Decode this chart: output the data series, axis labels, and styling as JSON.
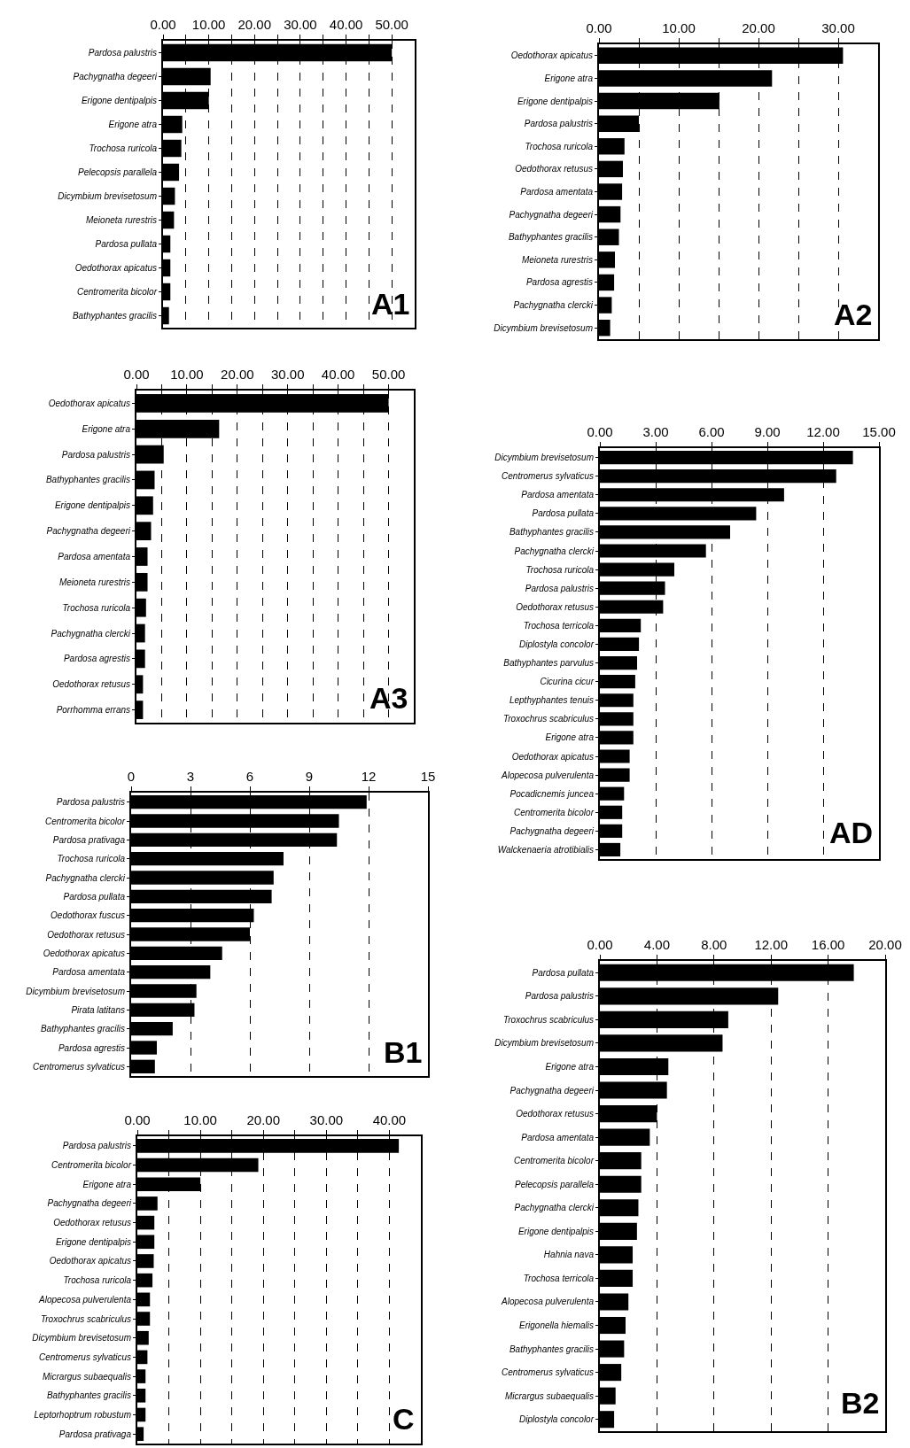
{
  "chart_data": [
    {
      "type": "bar",
      "orientation": "horizontal",
      "title": "A1",
      "color": "#000000",
      "grid": "x",
      "categories": [
        "Pardosa palustris",
        "Pachygnatha degeeri",
        "Erigone dentipalpis",
        "Erigone atra",
        "Trochosa ruricola",
        "Pelecopsis parallela",
        "Dicymbium brevisetosum",
        "Meioneta rurestris",
        "Pardosa pullata",
        "Oedothorax apicatus",
        "Centromerita bicolor",
        "Bathyphantes gracilis"
      ],
      "values": [
        50,
        10.4,
        10,
        4.2,
        4,
        3.5,
        2.6,
        2.4,
        1.6,
        1.6,
        1.6,
        1.3
      ],
      "xlim": [
        0,
        55
      ],
      "xticks": [
        {
          "value": 0,
          "label": "0.00"
        },
        {
          "value": 5,
          "label": null
        },
        {
          "value": 10,
          "label": "10.00"
        },
        {
          "value": 15,
          "label": null
        },
        {
          "value": 20,
          "label": "20.00"
        },
        {
          "value": 25,
          "label": null
        },
        {
          "value": 30,
          "label": "30.00"
        },
        {
          "value": 35,
          "label": null
        },
        {
          "value": 40,
          "label": "40.00"
        },
        {
          "value": 45,
          "label": null
        },
        {
          "value": 50,
          "label": "50.00"
        }
      ]
    },
    {
      "type": "bar",
      "orientation": "horizontal",
      "title": "A2",
      "color": "#000000",
      "grid": "x",
      "categories": [
        "Oedothorax apicatus",
        "Erigone atra",
        "Erigone dentipalpis",
        "Pardosa palustris",
        "Trochosa ruricola",
        "Oedothorax retusus",
        "Pardosa amentata",
        "Pachygnatha degeeri",
        "Bathyphantes gracilis",
        "Meioneta rurestris",
        "Pardosa agrestis",
        "Pachygnatha clercki",
        "Dicymbium brevisetosum"
      ],
      "values": [
        30.6,
        21.7,
        15.1,
        5,
        3.2,
        3,
        2.9,
        2.7,
        2.5,
        2,
        1.9,
        1.6,
        1.4
      ],
      "xlim": [
        0,
        35
      ],
      "xticks": [
        {
          "value": 0,
          "label": "0.00"
        },
        {
          "value": 5,
          "label": null
        },
        {
          "value": 10,
          "label": "10.00"
        },
        {
          "value": 15,
          "label": null
        },
        {
          "value": 20,
          "label": "20.00"
        },
        {
          "value": 25,
          "label": null
        },
        {
          "value": 30,
          "label": "30.00"
        }
      ]
    },
    {
      "type": "bar",
      "orientation": "horizontal",
      "title": "A3",
      "color": "#000000",
      "grid": "x",
      "categories": [
        "Oedothorax apicatus",
        "Erigone atra",
        "Pardosa palustris",
        "Bathyphantes gracilis",
        "Erigone dentipalpis",
        "Pachygnatha degeeri",
        "Pardosa amentata",
        "Meioneta rurestris",
        "Trochosa ruricola",
        "Pachygnatha clercki",
        "Pardosa agrestis",
        "Oedothorax retusus",
        "Porrhomma errans"
      ],
      "values": [
        50,
        16.4,
        5.4,
        3.6,
        3.3,
        2.9,
        2.2,
        2.2,
        1.9,
        1.7,
        1.7,
        1.3,
        1.3
      ],
      "xlim": [
        0,
        55
      ],
      "xticks": [
        {
          "value": 0,
          "label": "0.00"
        },
        {
          "value": 5,
          "label": null
        },
        {
          "value": 10,
          "label": "10.00"
        },
        {
          "value": 15,
          "label": null
        },
        {
          "value": 20,
          "label": "20.00"
        },
        {
          "value": 25,
          "label": null
        },
        {
          "value": 30,
          "label": "30.00"
        },
        {
          "value": 35,
          "label": null
        },
        {
          "value": 40,
          "label": "40.00"
        },
        {
          "value": 45,
          "label": null
        },
        {
          "value": 50,
          "label": "50.00"
        }
      ]
    },
    {
      "type": "bar",
      "orientation": "horizontal",
      "title": "AD",
      "color": "#000000",
      "grid": "x",
      "categories": [
        "Dicymbium brevisetosum",
        "Centromerus sylvaticus",
        "Pardosa amentata",
        "Pardosa pullata",
        "Bathyphantes gracilis",
        "Pachygnatha clercki",
        "Trochosa ruricola",
        "Pardosa palustris",
        "Oedothorax retusus",
        "Trochosa terricola",
        "Diplostyla concolor",
        "Bathyphantes parvulus",
        "Cicurina cicur",
        "Lepthyphantes tenuis",
        "Troxochrus scabriculus",
        "Erigone atra",
        "Oedothorax apicatus",
        "Alopecosa pulverulenta",
        "Pocadicnemis juncea",
        "Centromerita bicolor",
        "Pachygnatha degeeri",
        "Walckenaeria atrotibialis"
      ],
      "values": [
        13.6,
        12.7,
        9.9,
        8.4,
        7,
        5.7,
        4,
        3.5,
        3.4,
        2.2,
        2.1,
        2,
        1.9,
        1.8,
        1.8,
        1.8,
        1.6,
        1.6,
        1.3,
        1.2,
        1.2,
        1.1
      ],
      "xlim": [
        0,
        15
      ],
      "xticks": [
        {
          "value": 0,
          "label": "0.00"
        },
        {
          "value": 3,
          "label": "3.00"
        },
        {
          "value": 6,
          "label": "6.00"
        },
        {
          "value": 9,
          "label": "9.00"
        },
        {
          "value": 12,
          "label": "12.00"
        },
        {
          "value": 15,
          "label": "15.00"
        }
      ]
    },
    {
      "type": "bar",
      "orientation": "horizontal",
      "title": "B1",
      "color": "#000000",
      "grid": "x",
      "categories": [
        "Pardosa palustris",
        "Centromerita bicolor",
        "Pardosa prativaga",
        "Trochosa ruricola",
        "Pachygnatha clercki",
        "Pardosa pullata",
        "Oedothorax fuscus",
        "Oedothorax retusus",
        "Oedothorax apicatus",
        "Pardosa amentata",
        "Dicymbium brevisetosum",
        "Pirata latitans",
        "Bathyphantes gracilis",
        "Pardosa agrestis",
        "Centromerus sylvaticus"
      ],
      "values": [
        11.9,
        10.5,
        10.4,
        7.7,
        7.2,
        7.1,
        6.2,
        6,
        4.6,
        4,
        3.3,
        3.2,
        2.1,
        1.3,
        1.2
      ],
      "xlim": [
        0,
        15
      ],
      "xticks": [
        0,
        3,
        6,
        9,
        12,
        15
      ]
    },
    {
      "type": "bar",
      "orientation": "horizontal",
      "title": "B2",
      "color": "#000000",
      "grid": "x",
      "categories": [
        "Pardosa pullata",
        "Pardosa palustris",
        "Troxochrus scabriculus",
        "Dicymbium brevisetosum",
        "Erigone atra",
        "Pachygnatha degeeri",
        "Oedothorax retusus",
        "Pardosa amentata",
        "Centromerita bicolor",
        "Pelecopsis parallela",
        "Pachygnatha clercki",
        "Erigone dentipalpis",
        "Hahnia nava",
        "Trochosa terricola",
        "Alopecosa pulverulenta",
        "Erigonella hiemalis",
        "Bathyphantes gracilis",
        "Centromerus sylvaticus",
        "Micrargus subaequalis",
        "Diplostyla concolor"
      ],
      "values": [
        17.8,
        12.5,
        9,
        8.6,
        4.8,
        4.7,
        4,
        3.5,
        2.9,
        2.9,
        2.7,
        2.6,
        2.3,
        2.3,
        2,
        1.8,
        1.7,
        1.5,
        1.1,
        1
      ],
      "xlim": [
        0,
        20
      ],
      "xticks": [
        {
          "value": 0,
          "label": "0.00"
        },
        {
          "value": 4,
          "label": "4.00"
        },
        {
          "value": 8,
          "label": "8.00"
        },
        {
          "value": 12,
          "label": "12.00"
        },
        {
          "value": 16,
          "label": "16.00"
        },
        {
          "value": 20,
          "label": "20.00"
        }
      ]
    },
    {
      "type": "bar",
      "orientation": "horizontal",
      "title": "C",
      "color": "#000000",
      "grid": "x",
      "categories": [
        "Pardosa palustris",
        "Centromerita bicolor",
        "Erigone atra",
        "Pachygnatha degeeri",
        "Oedothorax retusus",
        "Erigone dentipalpis",
        "Oedothorax apicatus",
        "Trochosa ruricola",
        "Alopecosa pulverulenta",
        "Troxochrus scabriculus",
        "Dicymbium brevisetosum",
        "Centromerus sylvaticus",
        "Micrargus subaequalis",
        "Bathyphantes gracilis",
        "Leptorhoptrum robustum",
        "Pardosa prativaga"
      ],
      "values": [
        41.5,
        19.2,
        10,
        3.2,
        2.7,
        2.7,
        2.6,
        2.4,
        2,
        2,
        1.8,
        1.6,
        1.3,
        1.3,
        1.3,
        1
      ],
      "xlim": [
        0,
        45
      ],
      "xticks": [
        {
          "value": 0,
          "label": "0.00"
        },
        {
          "value": 5,
          "label": null
        },
        {
          "value": 10,
          "label": "10.00"
        },
        {
          "value": 15,
          "label": null
        },
        {
          "value": 20,
          "label": "20.00"
        },
        {
          "value": 25,
          "label": null
        },
        {
          "value": 30,
          "label": "30.00"
        },
        {
          "value": 35,
          "label": null
        },
        {
          "value": 40,
          "label": "40.00"
        }
      ]
    }
  ]
}
